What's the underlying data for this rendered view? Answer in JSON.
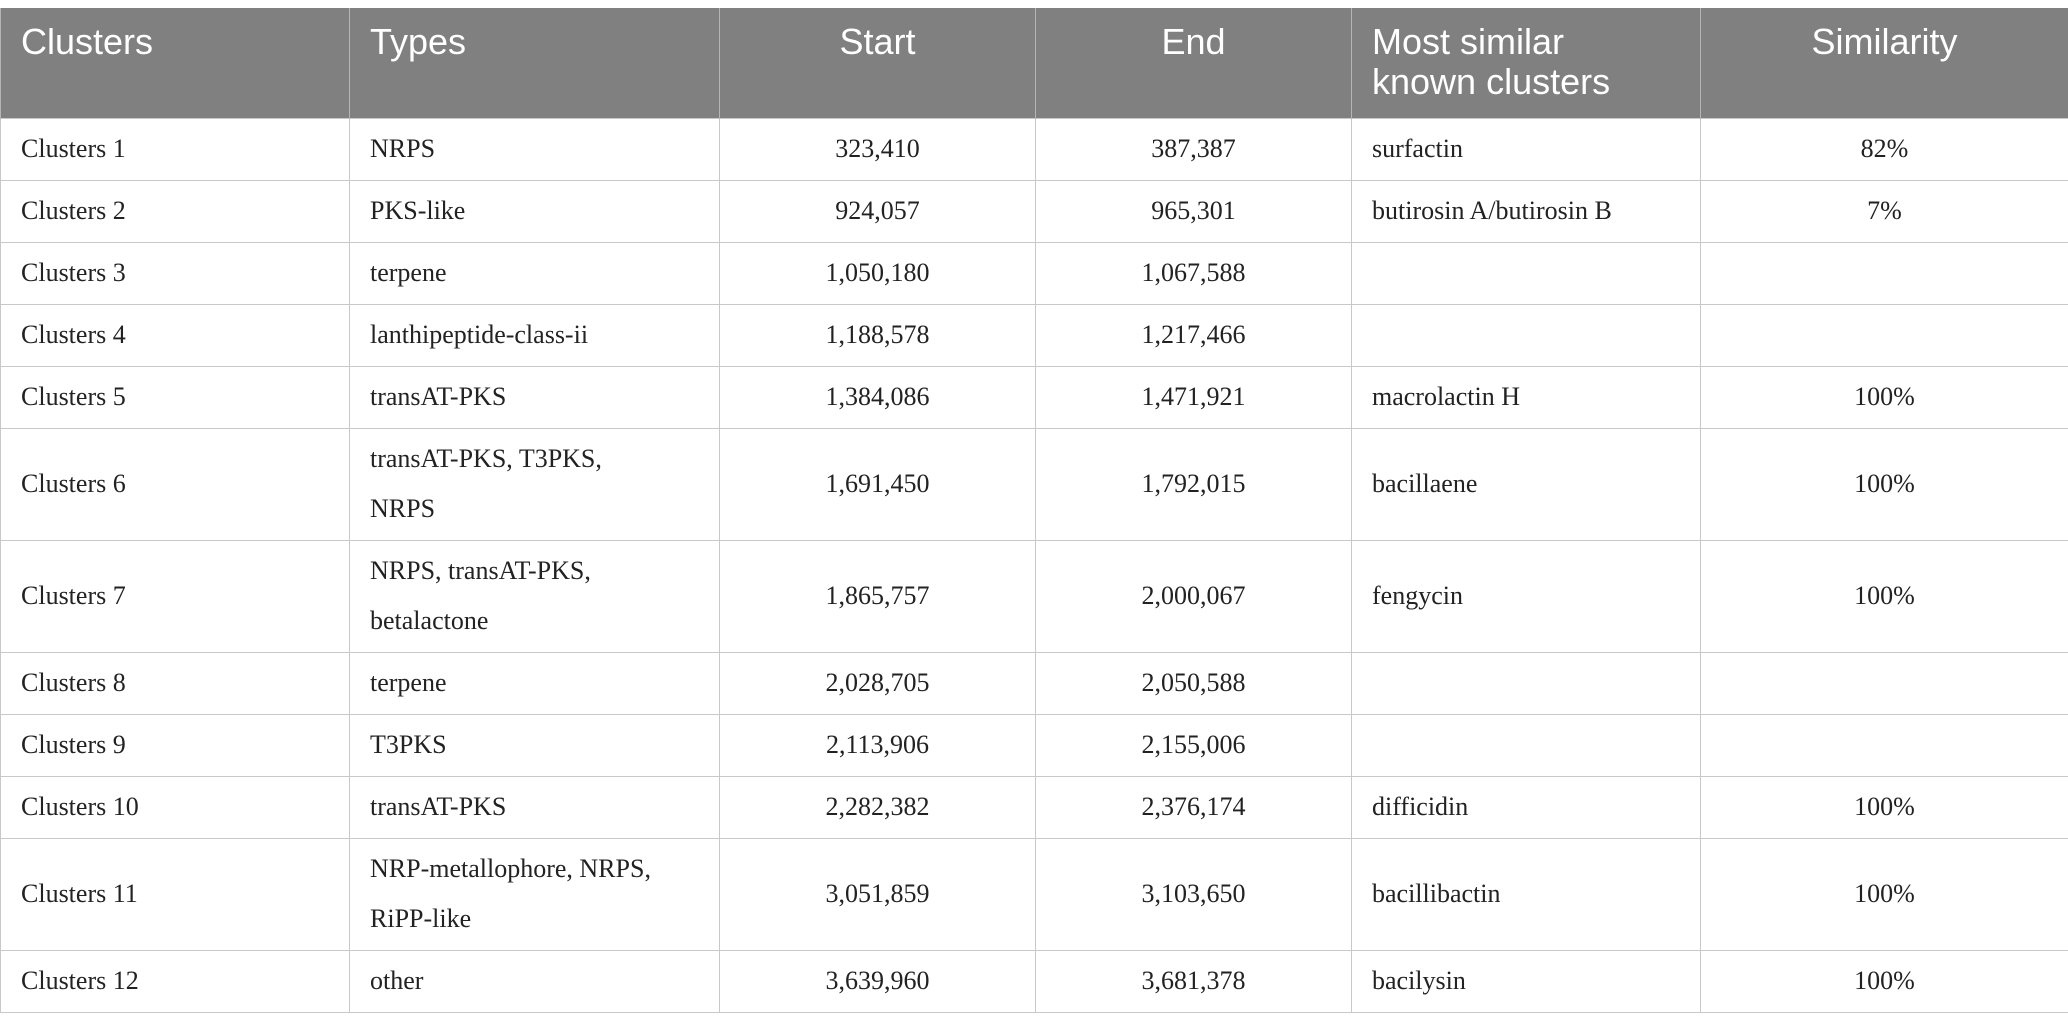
{
  "table": {
    "headers": [
      "Clusters",
      "Types",
      "Start",
      "End",
      "Most similar known clusters",
      "Similarity"
    ],
    "rows": [
      {
        "cluster": "Clusters 1",
        "types": "NRPS",
        "start": "323,410",
        "end": "387,387",
        "similar": "surfactin",
        "similarity": "82%"
      },
      {
        "cluster": "Clusters 2",
        "types": "PKS-like",
        "start": "924,057",
        "end": "965,301",
        "similar": "butirosin A/butirosin B",
        "similarity": "7%"
      },
      {
        "cluster": "Clusters 3",
        "types": "terpene",
        "start": "1,050,180",
        "end": "1,067,588",
        "similar": "",
        "similarity": ""
      },
      {
        "cluster": "Clusters 4",
        "types": "lanthipeptide-class-ii",
        "start": "1,188,578",
        "end": "1,217,466",
        "similar": "",
        "similarity": ""
      },
      {
        "cluster": "Clusters 5",
        "types": "transAT-PKS",
        "start": "1,384,086",
        "end": "1,471,921",
        "similar": "macrolactin H",
        "similarity": "100%"
      },
      {
        "cluster": "Clusters 6",
        "types": "transAT-PKS, T3PKS, NRPS",
        "start": "1,691,450",
        "end": "1,792,015",
        "similar": "bacillaene",
        "similarity": "100%"
      },
      {
        "cluster": "Clusters 7",
        "types": "NRPS, transAT-PKS, betalactone",
        "start": "1,865,757",
        "end": "2,000,067",
        "similar": "fengycin",
        "similarity": "100%"
      },
      {
        "cluster": "Clusters 8",
        "types": "terpene",
        "start": "2,028,705",
        "end": "2,050,588",
        "similar": "",
        "similarity": ""
      },
      {
        "cluster": "Clusters 9",
        "types": "T3PKS",
        "start": "2,113,906",
        "end": "2,155,006",
        "similar": "",
        "similarity": ""
      },
      {
        "cluster": "Clusters 10",
        "types": "transAT-PKS",
        "start": "2,282,382",
        "end": "2,376,174",
        "similar": "difficidin",
        "similarity": "100%"
      },
      {
        "cluster": "Clusters 11",
        "types": "NRP-metallophore, NRPS, RiPP-like",
        "start": "3,051,859",
        "end": "3,103,650",
        "similar": "bacillibactin",
        "similarity": "100%"
      },
      {
        "cluster": "Clusters 12",
        "types": "other",
        "start": "3,639,960",
        "end": "3,681,378",
        "similar": "bacilysin",
        "similarity": "100%"
      }
    ]
  }
}
